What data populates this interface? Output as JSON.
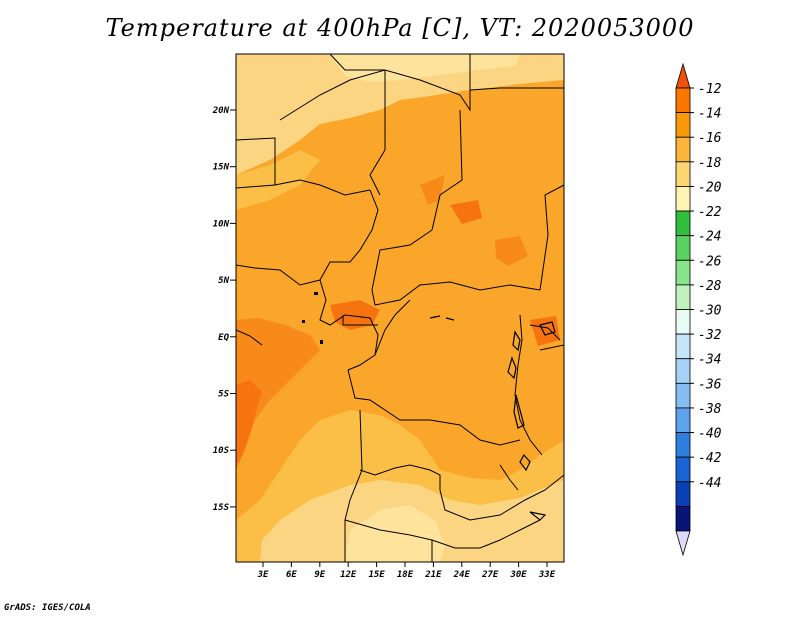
{
  "title": "Temperature at 400hPa [C], VT: 2020053000",
  "credit": "GrADS: IGES/COLA",
  "y_ticks": [
    "20N",
    "15N",
    "10N",
    "5N",
    "EQ",
    "5S",
    "10S",
    "15S"
  ],
  "x_ticks": [
    "3E",
    "6E",
    "9E",
    "12E",
    "15E",
    "18E",
    "21E",
    "24E",
    "27E",
    "30E",
    "33E"
  ],
  "colorbar": {
    "labels": [
      "-12",
      "-14",
      "-16",
      "-18",
      "-20",
      "-22",
      "-24",
      "-26",
      "-28",
      "-30",
      "-32",
      "-34",
      "-36",
      "-38",
      "-40",
      "-42",
      "-44"
    ],
    "colors": [
      "#f0500a",
      "#fa7800",
      "#fa9a0a",
      "#fbb43c",
      "#fcd673",
      "#fef5b4",
      "#2fbf3c",
      "#5ad25f",
      "#88e489",
      "#bff2bf",
      "#e8fbf6",
      "#c6e6fb",
      "#a6d2f7",
      "#86bdf2",
      "#5ea3ed",
      "#2d7fe0",
      "#1963d4",
      "#0b3fb6",
      "#0a1478",
      "#dcdcf8"
    ]
  },
  "colors": {
    "lightest": "#fde39c",
    "light": "#fbd582",
    "mid": "#fbbf48",
    "main": "#f9a62a",
    "dark": "#f88a1a",
    "darker": "#f67410"
  }
}
